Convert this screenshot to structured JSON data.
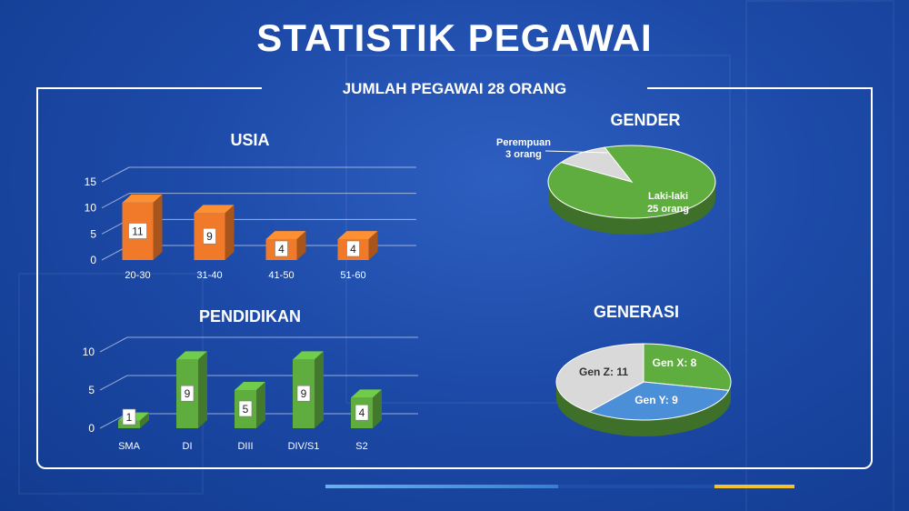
{
  "title": "STATISTIK PEGAWAI",
  "subtitle": "JUMLAH PEGAWAI 28 ORANG",
  "colors": {
    "orange": "#f07a2a",
    "green": "#5fad3f",
    "blue": "#4a8fd8",
    "grey": "#d9d9d9",
    "accent_blue": "#4a9be0",
    "accent_yellow": "#f2c12e"
  },
  "chart_data": [
    {
      "id": "usia",
      "type": "bar",
      "title": "USIA",
      "categories": [
        "20-30",
        "31-40",
        "41-50",
        "51-60"
      ],
      "values": [
        11,
        9,
        4,
        4
      ],
      "ylim": [
        0,
        15
      ],
      "yticks": [
        0,
        5,
        10,
        15
      ],
      "grid": true,
      "color": "#f07a2a"
    },
    {
      "id": "pendidikan",
      "type": "bar",
      "title": "PENDIDIKAN",
      "categories": [
        "SMA",
        "DI",
        "DIII",
        "DIV/S1",
        "S2"
      ],
      "values": [
        1,
        9,
        5,
        9,
        4
      ],
      "ylim": [
        0,
        10
      ],
      "yticks": [
        0,
        5,
        10
      ],
      "grid": true,
      "color": "#5fad3f"
    },
    {
      "id": "gender",
      "type": "pie",
      "title": "GENDER",
      "slices": [
        {
          "label": "Laki-laki",
          "sublabel": "25 orang",
          "value": 25,
          "color": "#5fad3f"
        },
        {
          "label": "Perempuan",
          "sublabel": "3 orang",
          "value": 3,
          "color": "#d9d9d9"
        }
      ]
    },
    {
      "id": "generasi",
      "type": "pie",
      "title": "GENERASI",
      "slices": [
        {
          "label": "Gen X: 8",
          "value": 8,
          "color": "#5fad3f"
        },
        {
          "label": "Gen Y: 9",
          "value": 9,
          "color": "#4a8fd8"
        },
        {
          "label": "Gen Z: 11",
          "value": 11,
          "color": "#d9d9d9"
        }
      ]
    }
  ]
}
